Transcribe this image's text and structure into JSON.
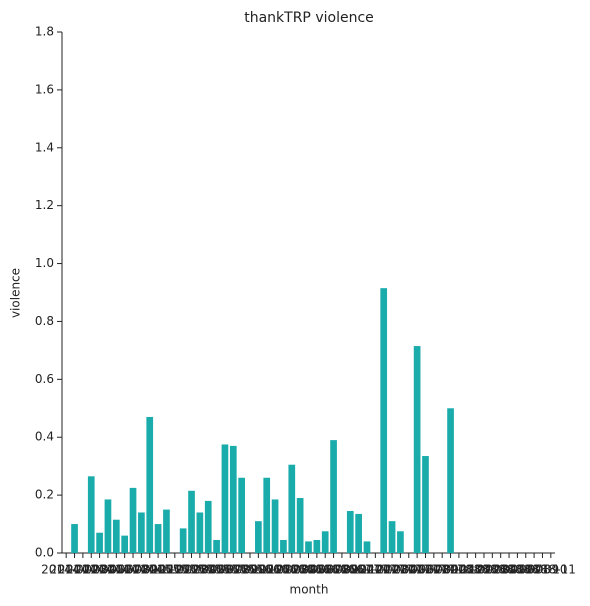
{
  "chart_data": {
    "type": "bar",
    "title": "thankTRP violence",
    "x_label": "month",
    "y_label": "violence",
    "categories": [
      "2014-01",
      "2014-02",
      "2014-03",
      "2014-04",
      "2014-05",
      "2014-06",
      "2014-07",
      "2014-08",
      "2014-09",
      "2014-10",
      "2014-11",
      "2014-12",
      "2015-01",
      "2015-02",
      "2015-03",
      "2015-04",
      "2015-05",
      "2015-06",
      "2015-07",
      "2015-08",
      "2015-09",
      "2015-10",
      "2015-11",
      "2015-12",
      "2016-01",
      "2016-02",
      "2016-03",
      "2016-04",
      "2016-05",
      "2016-06",
      "2016-07",
      "2016-08",
      "2016-09",
      "2016-10",
      "2016-11",
      "2016-12",
      "2017-01",
      "2017-02",
      "2017-03",
      "2017-04",
      "2017-05",
      "2017-06",
      "2017-07",
      "2017-08",
      "2017-09",
      "2017-10",
      "2017-11",
      "2017-12",
      "2018-01",
      "2018-02",
      "2018-03",
      "2018-04",
      "2018-05",
      "2018-06",
      "2018-07",
      "2018-08",
      "2018-09",
      "2018-10",
      "2018-11"
    ],
    "values": [
      0,
      0.1,
      0,
      0.265,
      0.07,
      0.185,
      0.115,
      0.06,
      0.225,
      0.14,
      0.47,
      0.1,
      0.15,
      0,
      0.085,
      0.215,
      0.14,
      0.18,
      0.045,
      0.375,
      0.37,
      0.26,
      0,
      0.11,
      0.26,
      0.185,
      0.045,
      0.305,
      0.19,
      0.04,
      0.045,
      0.075,
      0.39,
      0,
      0.145,
      0.135,
      0.04,
      0,
      0.915,
      0.11,
      0.075,
      0,
      0.715,
      0.335,
      0,
      0,
      0.5,
      0,
      0,
      0,
      0,
      0,
      0,
      0,
      0,
      0,
      0,
      0,
      0
    ],
    "color": "#1aabab",
    "ylim": [
      0,
      1.8
    ],
    "yticks": [
      {
        "value": 0,
        "label": "0.0"
      },
      {
        "value": 0.2,
        "label": "0.2"
      },
      {
        "value": 0.4,
        "label": "0.4"
      },
      {
        "value": 0.6,
        "label": "0.6"
      },
      {
        "value": 0.8,
        "label": "0.8"
      },
      {
        "value": 1,
        "label": "1.0"
      },
      {
        "value": 1.2,
        "label": "1.2"
      },
      {
        "value": 1.4,
        "label": "1.4"
      },
      {
        "value": 1.6,
        "label": "1.6"
      },
      {
        "value": 1.8,
        "label": "1.8"
      }
    ],
    "grid": false
  }
}
